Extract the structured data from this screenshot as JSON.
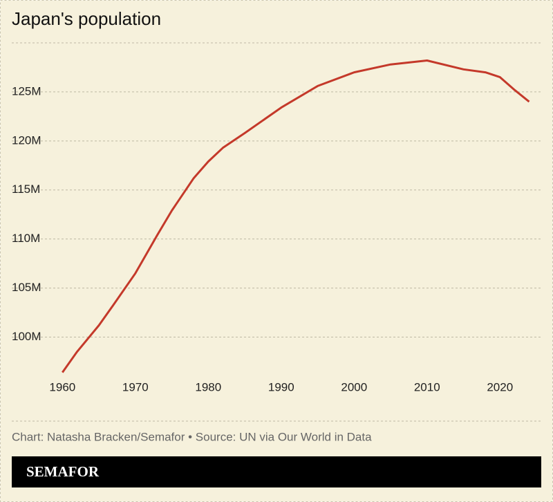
{
  "chart_data": {
    "type": "line",
    "title": "Japan's population",
    "x": [
      1960,
      1962,
      1965,
      1967,
      1970,
      1973,
      1975,
      1978,
      1980,
      1982,
      1985,
      1990,
      1995,
      2000,
      2005,
      2010,
      2015,
      2018,
      2020,
      2022,
      2024
    ],
    "series": [
      {
        "name": "Population",
        "color": "#c4392a",
        "values": [
          96.4,
          98.5,
          101.2,
          103.3,
          106.5,
          110.4,
          112.9,
          116.2,
          117.9,
          119.3,
          120.8,
          123.4,
          125.6,
          127.0,
          127.8,
          128.2,
          127.3,
          127.0,
          126.5,
          125.2,
          124.0
        ]
      }
    ],
    "xlim": [
      1959.4,
      2025
    ],
    "xticks": [
      1960,
      1970,
      1980,
      1990,
      2000,
      2010,
      2020
    ],
    "ylim": [
      96.3,
      130
    ],
    "yticks": [
      {
        "value": 100,
        "label": "100M"
      },
      {
        "value": 105,
        "label": "105M"
      },
      {
        "value": 110,
        "label": "110M"
      },
      {
        "value": 115,
        "label": "115M"
      },
      {
        "value": 120,
        "label": "120M"
      },
      {
        "value": 125,
        "label": "125M"
      }
    ],
    "grid": true,
    "source": "Chart: Natasha Bracken/Semafor • Source: UN via Our World in Data",
    "logo": "SEMAFOR"
  }
}
